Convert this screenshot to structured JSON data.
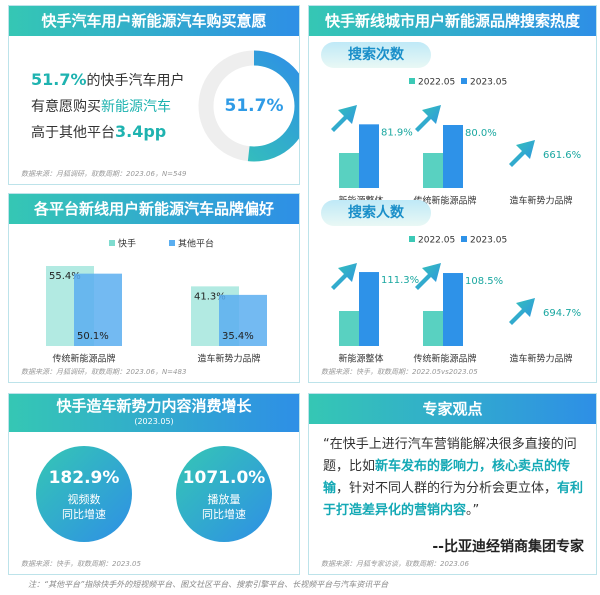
{
  "purchase": {
    "lines": [
      [
        {
          "text": "51.7%",
          "style": "bold"
        },
        {
          "text": "的快手汽车用户"
        }
      ],
      [
        {
          "text": "有意愿购买"
        },
        {
          "text": "新能源汽车",
          "style": "accent"
        }
      ],
      [
        {
          "text": "高于其他平台"
        },
        {
          "text": "3.4pp",
          "style": "bold"
        }
      ]
    ]
  },
  "search_panel": {
    "title": "快手新线城市用户新能源品牌搜索热度",
    "source": "数据来源：快手，取数周期：2022.05vs2023.05"
  },
  "chart_data": [
    {
      "type": "donut",
      "title": "快手汽车用户新能源汽车购买意愿",
      "values": [
        51.7
      ],
      "value_labels": [
        "51.7%"
      ],
      "color": "#2f9be6",
      "source": "数据来源：月狐调研，取数周期：2023.06，N=549"
    },
    {
      "type": "bar",
      "title": "各平台新线用户新能源汽车品牌偏好",
      "categories": [
        "传统新能源品牌",
        "造车新势力品牌"
      ],
      "series": [
        {
          "name": "快手",
          "color": "#7fdccf",
          "values": [
            55.4,
            41.3
          ],
          "value_labels": [
            "55.4%",
            "41.3%"
          ]
        },
        {
          "name": "其他平台",
          "color": "#5aaef0",
          "values": [
            50.1,
            35.4
          ],
          "value_labels": [
            "50.1%",
            "35.4%"
          ]
        }
      ],
      "source": "数据来源：月狐调研，取数周期：2023.06，N=483"
    },
    {
      "type": "growth",
      "title": "搜索次数",
      "legend": [
        {
          "name": "2022.05",
          "color": "#3cc9b6"
        },
        {
          "name": "2023.05",
          "color": "#2e92e8"
        }
      ],
      "categories": [
        "新能源整体",
        "传统新能源品牌",
        "造车新势力品牌"
      ],
      "values": [
        81.9,
        80.0,
        661.6
      ],
      "value_labels": [
        "81.9%",
        "80.0%",
        "661.6%"
      ],
      "bars": [
        true,
        true,
        false
      ]
    },
    {
      "type": "growth",
      "title": "搜索人数",
      "legend": [
        {
          "name": "2022.05",
          "color": "#3cc9b6"
        },
        {
          "name": "2023.05",
          "color": "#2e92e8"
        }
      ],
      "categories": [
        "新能源整体",
        "传统新能源品牌",
        "造车新势力品牌"
      ],
      "values": [
        111.3,
        108.5,
        694.7
      ],
      "value_labels": [
        "111.3%",
        "108.5%",
        "694.7%"
      ],
      "bars": [
        true,
        true,
        false
      ]
    }
  ],
  "growth": {
    "title": "快手造车新势力内容消费增长",
    "subtitle": "(2023.05)",
    "items": [
      {
        "value": "182.9%",
        "lines": [
          "视频数",
          "同比增速"
        ]
      },
      {
        "value": "1071.0%",
        "lines": [
          "播放量",
          "同比增速"
        ]
      }
    ],
    "source": "数据来源：快手，取数周期：2023.05"
  },
  "expert": {
    "title": "专家观点",
    "quote": [
      {
        "text": "“在快手上进行汽车营销能解决很多直接的问题，比如"
      },
      {
        "text": "新车发布的影响力，核心卖点的传输",
        "style": "bold"
      },
      {
        "text": "，针对不同人群的行为分析会更立体，"
      },
      {
        "text": "有利于打造差异化的营销内容",
        "style": "bold"
      },
      {
        "text": "。”"
      }
    ],
    "signature": "--比亚迪经销商集团专家",
    "source": "数据来源：月狐专家访谈，取数周期：2023.06"
  },
  "footnote": "注：“其他平台”指除快手外的短视频平台、图文社区平台、搜索引擎平台、长视频平台与汽车资讯平台"
}
